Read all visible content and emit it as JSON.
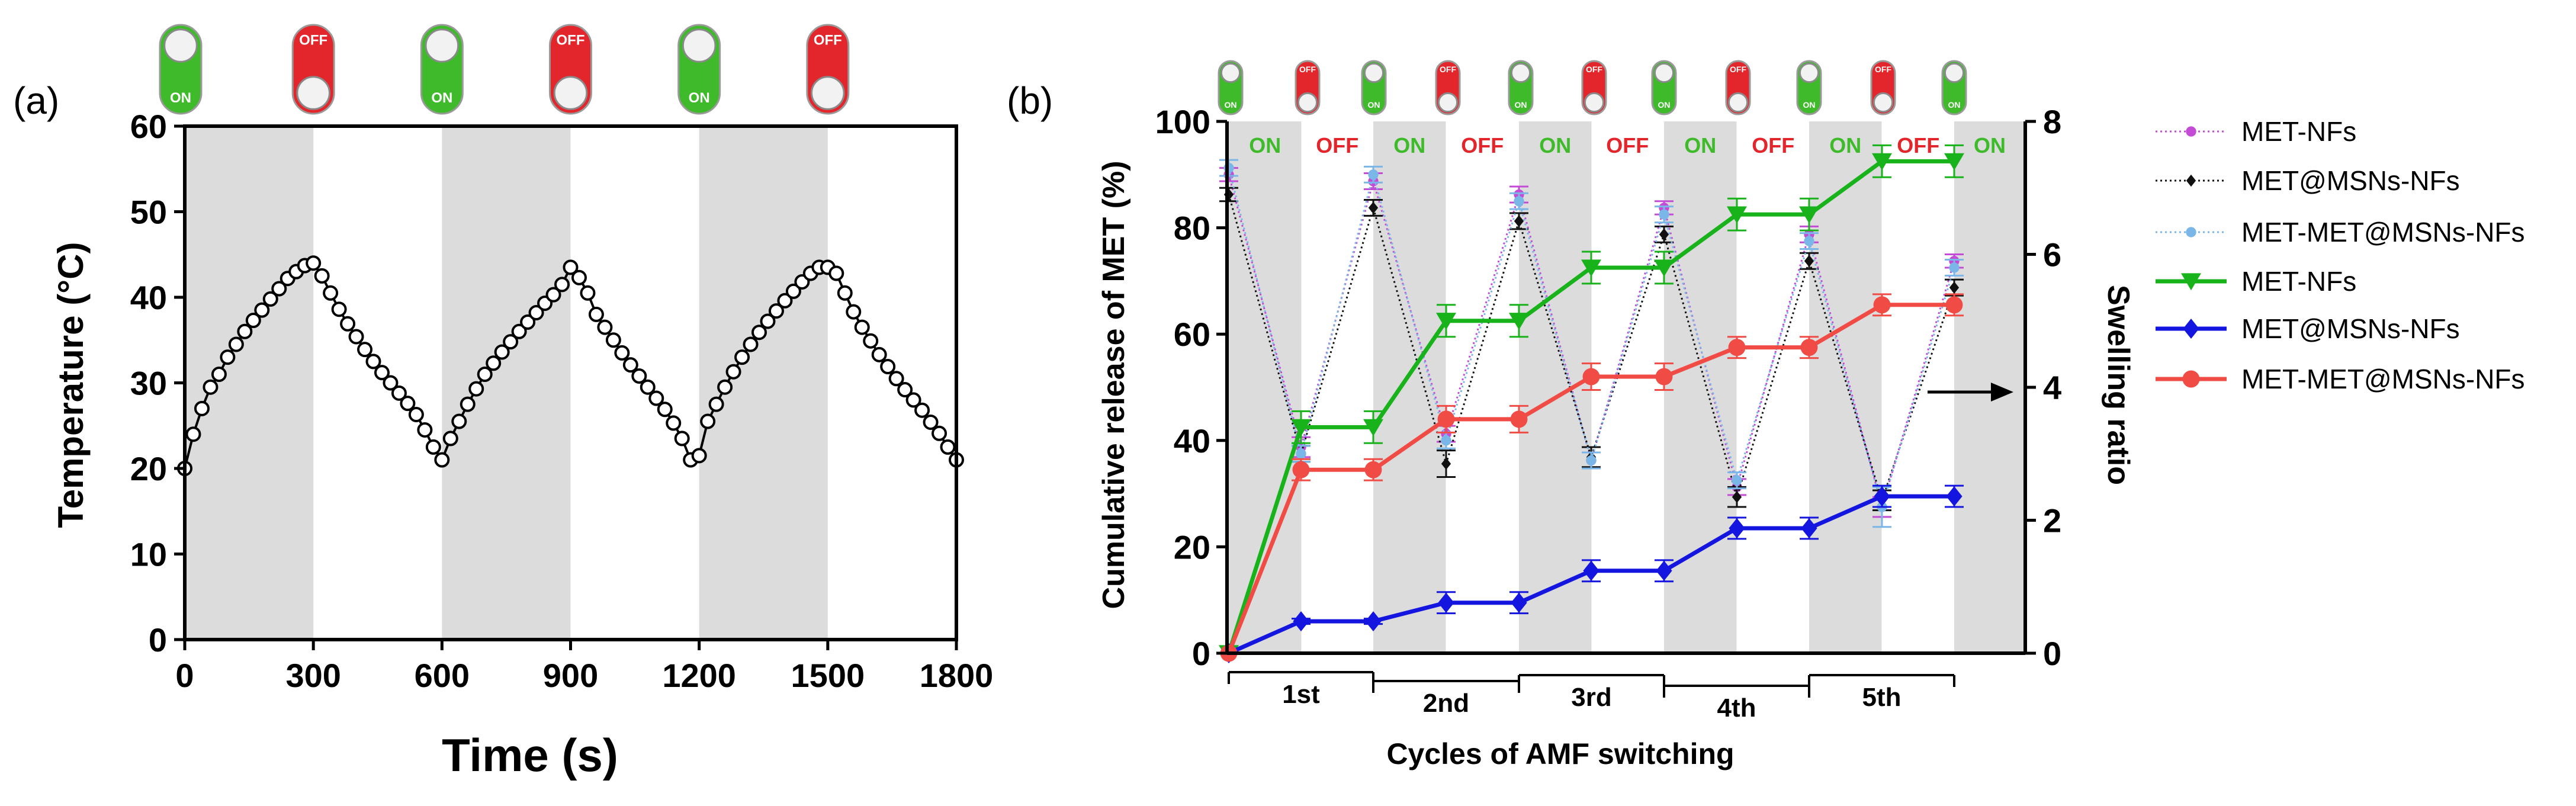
{
  "panel_a": {
    "label": "(a)",
    "switches": [
      {
        "state": "on",
        "text": "ON"
      },
      {
        "state": "off",
        "text": "OFF"
      },
      {
        "state": "on",
        "text": "ON"
      },
      {
        "state": "off",
        "text": "OFF"
      },
      {
        "state": "on",
        "text": "ON"
      },
      {
        "state": "off",
        "text": "OFF"
      }
    ]
  },
  "panel_b": {
    "label": "(b)",
    "switches": [
      {
        "state": "on",
        "text": "ON"
      },
      {
        "state": "off",
        "text": "OFF"
      },
      {
        "state": "on",
        "text": "ON"
      },
      {
        "state": "off",
        "text": "OFF"
      },
      {
        "state": "on",
        "text": "ON"
      },
      {
        "state": "off",
        "text": "OFF"
      },
      {
        "state": "on",
        "text": "ON"
      },
      {
        "state": "off",
        "text": "OFF"
      },
      {
        "state": "on",
        "text": "ON"
      },
      {
        "state": "off",
        "text": "OFF"
      },
      {
        "state": "on",
        "text": "ON"
      }
    ],
    "arrow_note": "arrow points to right axis",
    "legend_title": ""
  },
  "colors": {
    "on_green": "#3fba2b",
    "off_red": "#e3262b",
    "shade": "#dcdcdc",
    "met_nfs_dotted": "#c44bd6",
    "met_msns_dotted": "#111111",
    "met_met_msns_dotted": "#7ab6e8",
    "met_nfs": "#18b21a",
    "met_msns": "#1515e0",
    "met_met_msns": "#f04b45"
  },
  "chart_data": [
    {
      "id": "a",
      "type": "line",
      "title": "",
      "xlabel": "Time (s)",
      "ylabel": "Temperature (°C)",
      "xlim": [
        0,
        1800
      ],
      "ylim": [
        0,
        60
      ],
      "xticks": [
        0,
        300,
        600,
        900,
        1200,
        1500,
        1800
      ],
      "yticks": [
        0,
        10,
        20,
        30,
        40,
        50,
        60
      ],
      "shaded_intervals": [
        [
          0,
          300
        ],
        [
          600,
          900
        ],
        [
          1200,
          1500
        ]
      ],
      "series": [
        {
          "name": "Temperature",
          "color": "#000000",
          "marker": "open-circle",
          "x": [
            0,
            20,
            40,
            60,
            80,
            100,
            120,
            140,
            160,
            180,
            200,
            220,
            240,
            260,
            280,
            300,
            320,
            340,
            360,
            380,
            400,
            420,
            440,
            460,
            480,
            500,
            520,
            540,
            560,
            580,
            600,
            620,
            640,
            660,
            680,
            700,
            720,
            740,
            760,
            780,
            800,
            820,
            840,
            860,
            880,
            900,
            920,
            940,
            960,
            980,
            1000,
            1020,
            1040,
            1060,
            1080,
            1100,
            1120,
            1140,
            1160,
            1180,
            1200,
            1220,
            1240,
            1260,
            1280,
            1300,
            1320,
            1340,
            1360,
            1380,
            1400,
            1420,
            1440,
            1460,
            1480,
            1500,
            1520,
            1540,
            1560,
            1580,
            1600,
            1620,
            1640,
            1660,
            1680,
            1700,
            1720,
            1740,
            1760,
            1780,
            1800
          ],
          "values": [
            20,
            24,
            27,
            29.5,
            31,
            33,
            34.5,
            36,
            37.3,
            38.5,
            39.8,
            41,
            42.2,
            43,
            43.7,
            44,
            42.5,
            40.5,
            38.6,
            36.9,
            35.4,
            33.9,
            32.5,
            31.2,
            30,
            28.8,
            27.6,
            26.3,
            24.5,
            22.5,
            21,
            23.5,
            25.5,
            27.5,
            29.3,
            31,
            32.3,
            33.6,
            34.8,
            36,
            37.1,
            38.2,
            39.3,
            40.3,
            41.5,
            43.5,
            42.3,
            40.5,
            38,
            36.5,
            35,
            33.5,
            32.1,
            30.8,
            29.5,
            28.2,
            26.9,
            25.3,
            23.5,
            21,
            21.5,
            25.5,
            27.5,
            29.5,
            31.3,
            33,
            34.5,
            35.9,
            37.2,
            38.4,
            39.6,
            40.7,
            41.8,
            42.8,
            43.5,
            43.5,
            42.8,
            40.5,
            38.3,
            36.5,
            34.9,
            33.3,
            31.9,
            30.5,
            29.2,
            28,
            26.8,
            25.4,
            24.1,
            22.5,
            21
          ]
        }
      ]
    },
    {
      "id": "b",
      "type": "line",
      "title": "",
      "xlabel": "Cycles of AMF switching",
      "ylabel": "Cumulative release of MET (%)",
      "y2label": "Swelling ratio",
      "ylim": [
        0,
        100
      ],
      "y2lim": [
        0,
        8
      ],
      "yticks": [
        0,
        20,
        40,
        60,
        80,
        100
      ],
      "y2ticks": [
        0,
        2,
        4,
        6,
        8
      ],
      "x_positions": [
        0,
        1,
        2,
        3,
        4,
        5,
        6,
        7,
        8,
        9,
        10
      ],
      "cycle_labels": [
        "1st",
        "2nd",
        "3rd",
        "4th",
        "5th"
      ],
      "phase_labels": [
        "ON",
        "OFF",
        "ON",
        "OFF",
        "ON",
        "OFF",
        "ON",
        "OFF",
        "ON",
        "OFF",
        "ON"
      ],
      "shaded_positions": [
        0,
        2,
        4,
        6,
        8,
        10
      ],
      "legend": [
        {
          "name": "MET-NFs",
          "style": "dotted",
          "marker": "circle",
          "color": "#c44bd6"
        },
        {
          "name": "MET@MSNs-NFs",
          "style": "dotted",
          "marker": "diamond",
          "color": "#111111"
        },
        {
          "name": "MET-MET@MSNs-NFs",
          "style": "dotted",
          "marker": "circle",
          "color": "#7ab6e8"
        },
        {
          "name": "MET-NFs",
          "style": "solid",
          "marker": "triangle-down",
          "color": "#18b21a"
        },
        {
          "name": "MET@MSNs-NFs",
          "style": "solid",
          "marker": "diamond",
          "color": "#1515e0"
        },
        {
          "name": "MET-MET@MSNs-NFs",
          "style": "solid",
          "marker": "circle",
          "color": "#f04b45"
        }
      ],
      "series": [
        {
          "name": "MET-NFs",
          "axis": "y2",
          "style": "dotted",
          "color": "#c44bd6",
          "x": [
            0,
            1,
            2,
            3,
            4,
            5,
            6,
            7,
            8,
            9,
            10
          ],
          "values": [
            7.2,
            3.1,
            7.1,
            3.3,
            6.9,
            2.9,
            6.7,
            2.5,
            6.3,
            2.2,
            5.9
          ],
          "err": [
            0.1,
            0.15,
            0.12,
            0.12,
            0.12,
            0.12,
            0.1,
            0.12,
            0.12,
            0.15,
            0.1
          ]
        },
        {
          "name": "MET@MSNs-NFs",
          "axis": "y2",
          "style": "dotted",
          "color": "#111111",
          "x": [
            0,
            1,
            2,
            3,
            4,
            5,
            6,
            7,
            8,
            9,
            10
          ],
          "values": [
            6.9,
            3.0,
            6.7,
            2.85,
            6.5,
            2.95,
            6.3,
            2.35,
            5.9,
            2.3,
            5.5
          ],
          "err": [
            0.1,
            0.12,
            0.12,
            0.2,
            0.12,
            0.15,
            0.12,
            0.15,
            0.12,
            0.15,
            0.12
          ]
        },
        {
          "name": "MET-MET@MSNs-NFs",
          "axis": "y2",
          "style": "dotted",
          "color": "#7ab6e8",
          "x": [
            0,
            1,
            2,
            3,
            4,
            5,
            6,
            7,
            8,
            9,
            10
          ],
          "values": [
            7.3,
            3.0,
            7.2,
            3.2,
            6.8,
            2.9,
            6.6,
            2.6,
            6.2,
            2.2,
            5.8
          ],
          "err": [
            0.12,
            0.12,
            0.12,
            0.12,
            0.12,
            0.12,
            0.12,
            0.12,
            0.12,
            0.3,
            0.12
          ]
        },
        {
          "name": "MET-NFs",
          "axis": "y",
          "style": "solid",
          "color": "#18b21a",
          "marker": "triangle-down",
          "x": [
            0,
            1,
            2,
            3,
            4,
            5,
            6,
            7,
            8,
            9,
            10
          ],
          "values": [
            0,
            42.5,
            42.5,
            62.5,
            62.5,
            72.5,
            72.5,
            82.5,
            82.5,
            92.5,
            92.5
          ],
          "err": [
            0,
            3,
            3,
            3,
            3,
            3,
            3,
            3,
            3,
            3,
            3
          ]
        },
        {
          "name": "MET@MSNs-NFs",
          "axis": "y",
          "style": "solid",
          "color": "#1515e0",
          "marker": "diamond",
          "x": [
            0,
            1,
            2,
            3,
            4,
            5,
            6,
            7,
            8,
            9,
            10
          ],
          "values": [
            0,
            6,
            6,
            9.5,
            9.5,
            15.5,
            15.5,
            23.5,
            23.5,
            29.5,
            29.5
          ],
          "err": [
            0,
            0.5,
            0.5,
            2,
            2,
            2,
            2,
            2,
            2,
            2,
            2
          ]
        },
        {
          "name": "MET-MET@MSNs-NFs",
          "axis": "y",
          "style": "solid",
          "color": "#f04b45",
          "marker": "circle",
          "x": [
            0,
            1,
            2,
            3,
            4,
            5,
            6,
            7,
            8,
            9,
            10
          ],
          "values": [
            0,
            34.5,
            34.5,
            44,
            44,
            52,
            52,
            57.5,
            57.5,
            65.5,
            65.5
          ],
          "err": [
            0,
            2,
            2,
            2.5,
            2.5,
            2.5,
            2.5,
            2,
            2,
            2,
            2
          ]
        }
      ]
    }
  ]
}
